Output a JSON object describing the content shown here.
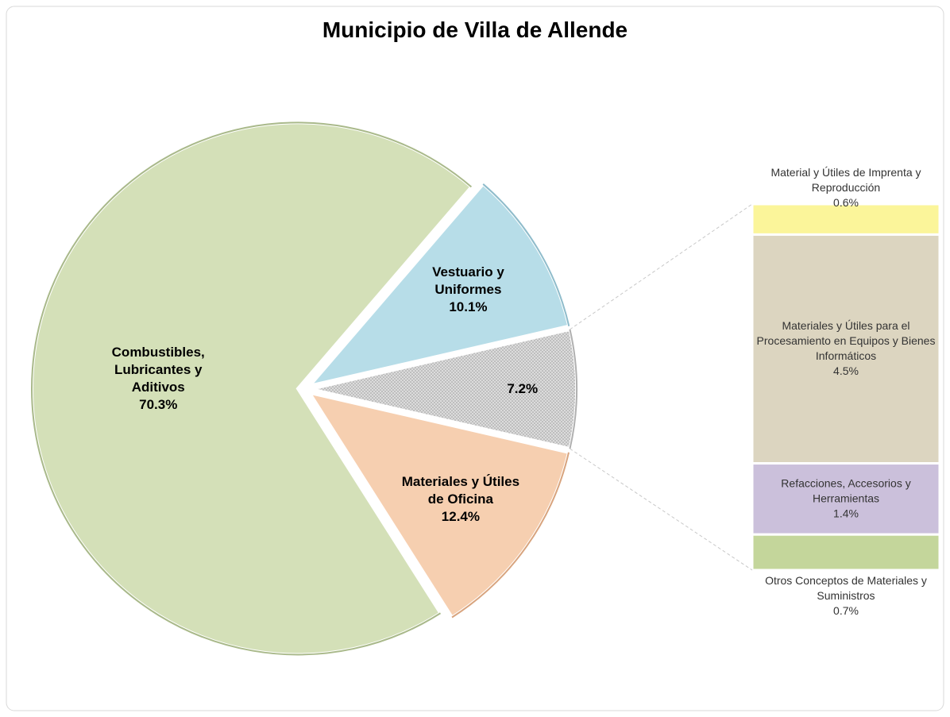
{
  "chart_data": {
    "type": "bar-of-pie",
    "title": "Municipio de Villa de Allende",
    "categories": [
      "Combustibles, Lubricantes y Aditivos",
      "Vestuario y Uniformes",
      null,
      "Materiales y Útiles de Oficina"
    ],
    "values": [
      70.3,
      10.1,
      7.2,
      12.4
    ],
    "value_labels": [
      "70.3%",
      "10.1%",
      "7.2%",
      "12.4%"
    ],
    "colors": [
      "#d4e0b8",
      "#b7dde8",
      "#d9d9d9",
      "#f6cfb0"
    ],
    "breakdown": {
      "categories": [
        "Material y Útiles de Imprenta y Reproducción",
        "Materiales y Útiles para el Procesamiento en Equipos y Bienes Informáticos",
        "Refacciones, Accesorios y Herramientas",
        "Otros Conceptos de Materiales y Suministros"
      ],
      "values": [
        0.6,
        4.5,
        1.4,
        0.7
      ],
      "value_labels": [
        "0.6%",
        "4.5%",
        "1.4%",
        "0.7%"
      ],
      "colors": [
        "#fbf59a",
        "#dcd5c0",
        "#cbc0db",
        "#c4d69b"
      ]
    }
  }
}
